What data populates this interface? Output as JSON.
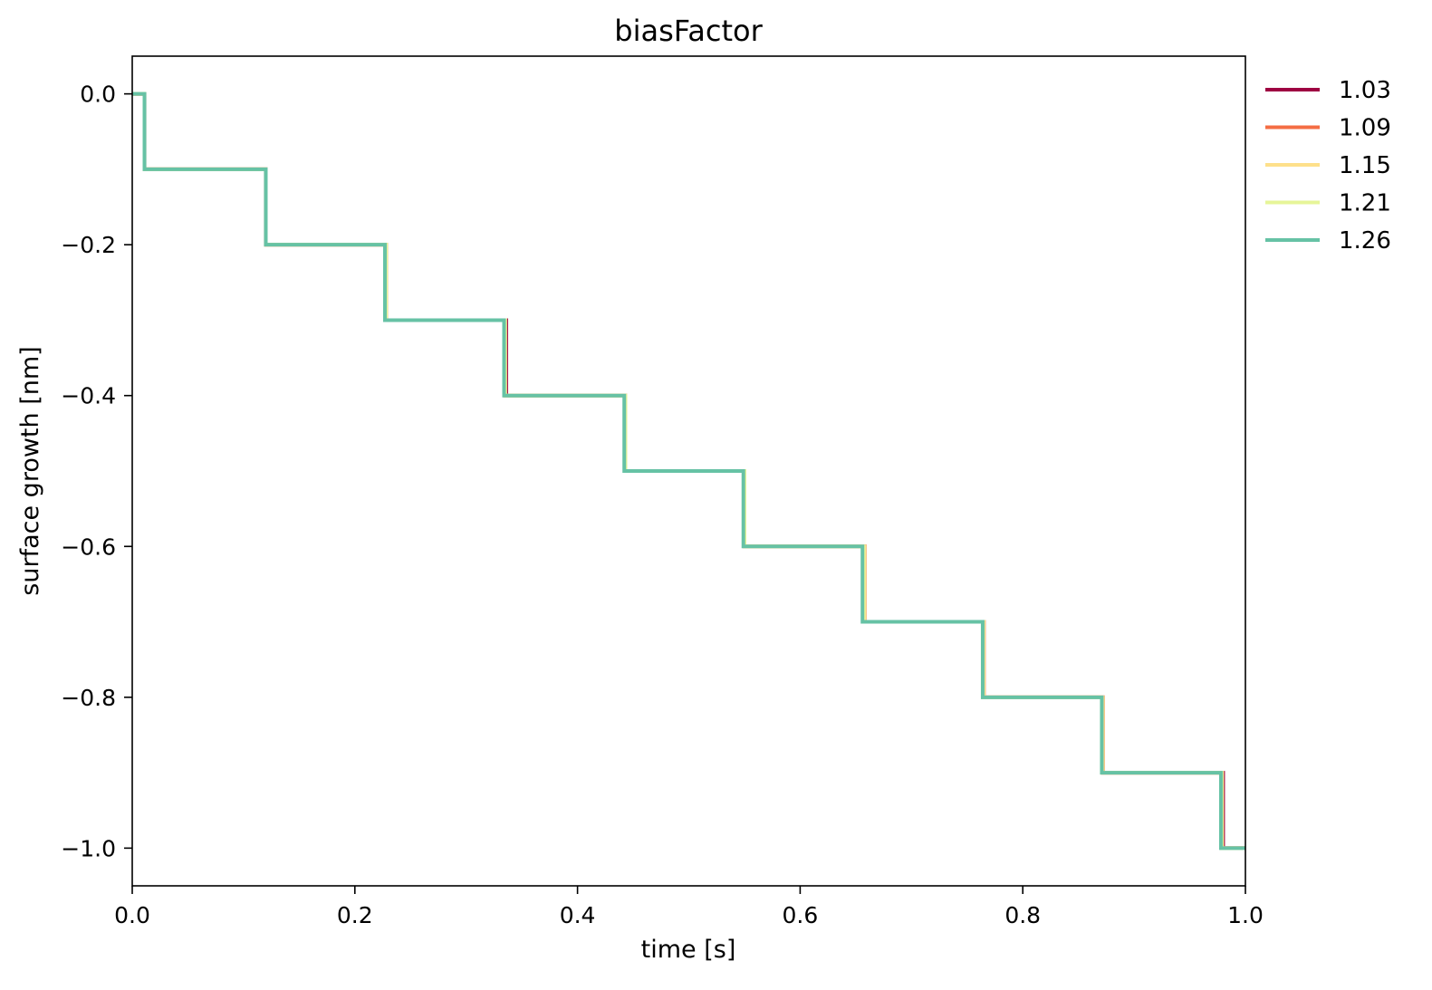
{
  "chart_data": {
    "type": "line",
    "title": "biasFactor",
    "xlabel": "time [s]",
    "ylabel": "surface growth [nm]",
    "xlim": [
      0.0,
      1.0
    ],
    "ylim": [
      -1.05,
      0.05
    ],
    "xticks": [
      0.0,
      0.2,
      0.4,
      0.6,
      0.8,
      1.0
    ],
    "xtick_labels": [
      "0.0",
      "0.2",
      "0.4",
      "0.6",
      "0.8",
      "1.0"
    ],
    "yticks": [
      0.0,
      -0.2,
      -0.4,
      -0.6,
      -0.8,
      -1.0
    ],
    "ytick_labels": [
      "0.0",
      "−0.2",
      "−0.4",
      "−0.6",
      "−0.8",
      "−1.0"
    ],
    "grid": false,
    "legend_position": "outside-right",
    "step_style": "post",
    "series": [
      {
        "name": "1.03",
        "color": "#9e0142",
        "x": [
          0.0,
          0.011,
          0.12,
          0.228,
          0.336,
          0.443,
          0.55,
          0.658,
          0.765,
          0.872,
          0.98,
          1.0
        ],
        "y": [
          0.0,
          -0.1,
          -0.2,
          -0.3,
          -0.4,
          -0.5,
          -0.6,
          -0.7,
          -0.8,
          -0.9,
          -1.0,
          -1.0
        ]
      },
      {
        "name": "1.09",
        "color": "#f46d43",
        "x": [
          0.0,
          0.011,
          0.12,
          0.228,
          0.335,
          0.443,
          0.55,
          0.658,
          0.765,
          0.872,
          0.979,
          1.0
        ],
        "y": [
          0.0,
          -0.1,
          -0.2,
          -0.3,
          -0.4,
          -0.5,
          -0.6,
          -0.7,
          -0.8,
          -0.9,
          -1.0,
          -1.0
        ]
      },
      {
        "name": "1.15",
        "color": "#fee08b",
        "x": [
          0.0,
          0.011,
          0.12,
          0.228,
          0.335,
          0.443,
          0.55,
          0.658,
          0.765,
          0.872,
          0.979,
          1.0
        ],
        "y": [
          0.0,
          -0.1,
          -0.2,
          -0.3,
          -0.4,
          -0.5,
          -0.6,
          -0.7,
          -0.8,
          -0.9,
          -1.0,
          -1.0
        ]
      },
      {
        "name": "1.21",
        "color": "#e6f598",
        "x": [
          0.0,
          0.011,
          0.12,
          0.228,
          0.335,
          0.443,
          0.55,
          0.657,
          0.764,
          0.871,
          0.979,
          1.0
        ],
        "y": [
          0.0,
          -0.1,
          -0.2,
          -0.3,
          -0.4,
          -0.5,
          -0.6,
          -0.7,
          -0.8,
          -0.9,
          -1.0,
          -1.0
        ]
      },
      {
        "name": "1.26",
        "color": "#66c2a5",
        "x": [
          0.0,
          0.011,
          0.12,
          0.227,
          0.334,
          0.442,
          0.549,
          0.656,
          0.764,
          0.871,
          0.978,
          1.0
        ],
        "y": [
          0.0,
          -0.1,
          -0.2,
          -0.3,
          -0.4,
          -0.5,
          -0.6,
          -0.7,
          -0.8,
          -0.9,
          -1.0,
          -1.0
        ]
      }
    ]
  }
}
